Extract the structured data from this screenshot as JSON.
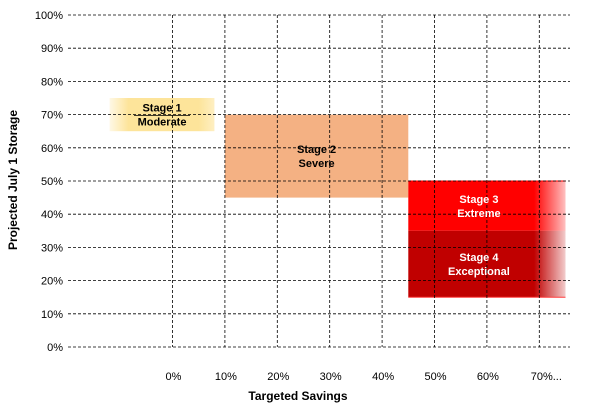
{
  "chart_data": {
    "type": "area",
    "xlabel": "Targeted Savings",
    "ylabel": "Projected July 1 Storage",
    "x_ticks": [
      "0%",
      "10%",
      "20%",
      "30%",
      "40%",
      "50%",
      "60%",
      "70%..."
    ],
    "y_ticks": [
      "0%",
      "10%",
      "20%",
      "30%",
      "40%",
      "50%",
      "60%",
      "70%",
      "80%",
      "90%",
      "100%"
    ],
    "xlim": [
      -25,
      75
    ],
    "ylim": [
      0,
      100
    ],
    "grid": true,
    "regions": [
      {
        "stage": "Stage 1",
        "label": "Moderate",
        "x": [
          -12,
          8
        ],
        "y": [
          65,
          75
        ],
        "color": "#fde49a"
      },
      {
        "stage": "Stage 2",
        "label": "Severe",
        "x": [
          10,
          45
        ],
        "y": [
          45,
          70
        ],
        "color": "#f4b183"
      },
      {
        "stage": "Stage 3",
        "label": "Extreme",
        "x": [
          45,
          75
        ],
        "y": [
          35,
          50
        ],
        "color": "#ff0000"
      },
      {
        "stage": "Stage 4",
        "label": "Exceptional",
        "x": [
          45,
          75
        ],
        "y": [
          15,
          35
        ],
        "color": "#c00000"
      }
    ]
  }
}
